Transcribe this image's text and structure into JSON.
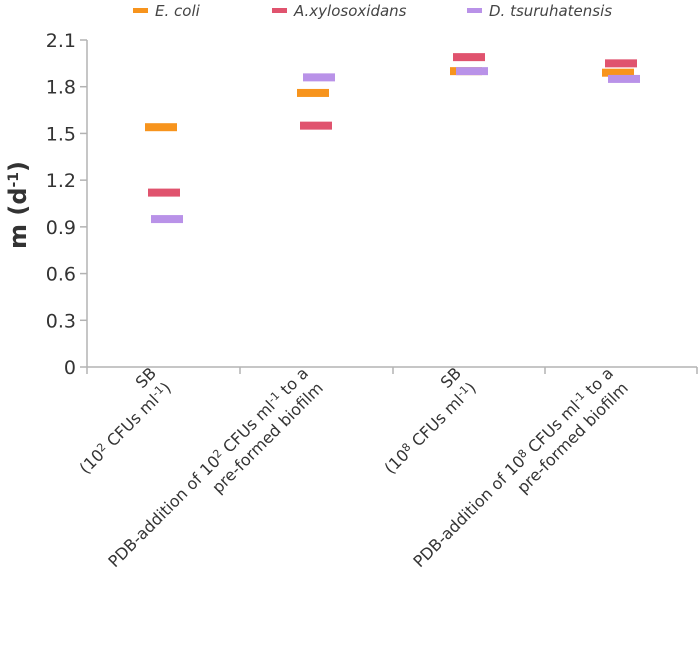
{
  "chart_data": {
    "type": "scatter",
    "title": "",
    "ylabel": {
      "main": "m (d",
      "sup": "-1",
      "close": ")"
    },
    "ylim": [
      0,
      2.1
    ],
    "yticks": [
      "0",
      "0.3",
      "0.6",
      "0.9",
      "1.2",
      "1.5",
      "1.8",
      "2.1"
    ],
    "grid": false,
    "legend_position": "top",
    "categories": [
      {
        "lines": [
          [
            {
              "t": "SB"
            }
          ],
          [
            {
              "t": "(10"
            },
            {
              "t": "2",
              "sup": true
            },
            {
              "t": " CFUs ml"
            },
            {
              "t": "-1",
              "sup": true
            },
            {
              "t": ")"
            }
          ]
        ]
      },
      {
        "lines": [
          [
            {
              "t": "PDB-addition of 10"
            },
            {
              "t": "2",
              "sup": true
            },
            {
              "t": " CFUs ml"
            },
            {
              "t": "-1",
              "sup": true
            },
            {
              "t": " to a"
            }
          ],
          [
            {
              "t": "pre-formed biofilm"
            }
          ]
        ]
      },
      {
        "lines": [
          [
            {
              "t": "SB"
            }
          ],
          [
            {
              "t": "(10"
            },
            {
              "t": "8",
              "sup": true
            },
            {
              "t": " CFUs ml"
            },
            {
              "t": "-1",
              "sup": true
            },
            {
              "t": ")"
            }
          ]
        ]
      },
      {
        "lines": [
          [
            {
              "t": "PDB-addition of 10"
            },
            {
              "t": "8",
              "sup": true
            },
            {
              "t": " CFUs ml"
            },
            {
              "t": "-1",
              "sup": true
            },
            {
              "t": " to a"
            }
          ],
          [
            {
              "t": "pre-formed biofilm"
            }
          ]
        ]
      }
    ],
    "series": [
      {
        "name": "E. coli",
        "color": "#f7941d",
        "values": [
          1.54,
          1.76,
          1.9,
          1.89
        ]
      },
      {
        "name": "A.xylosoxidans",
        "color": "#e0536e",
        "values": [
          1.12,
          1.55,
          1.99,
          1.95
        ]
      },
      {
        "name": "D. tsuruhatensis",
        "color": "#b992e8",
        "values": [
          0.95,
          1.86,
          1.9,
          1.85
        ]
      }
    ]
  }
}
